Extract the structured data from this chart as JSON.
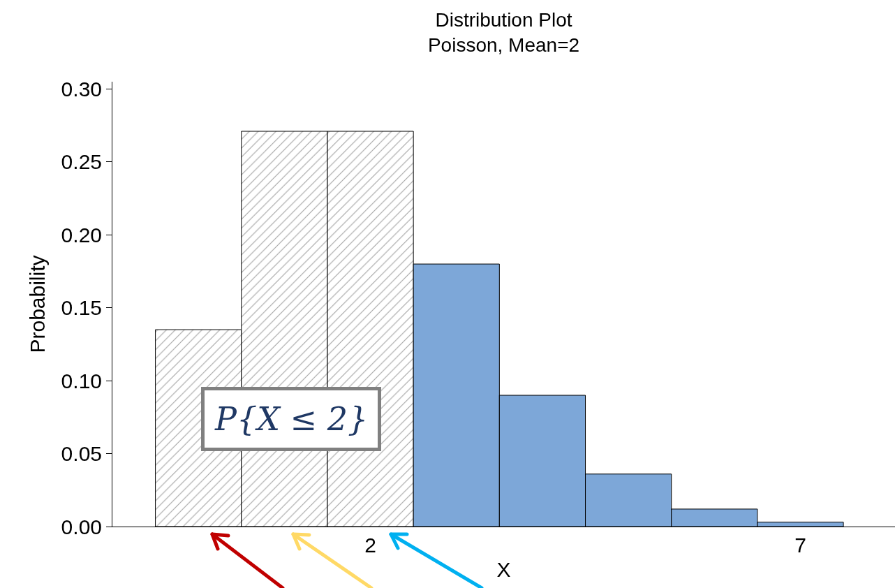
{
  "chart_data": {
    "type": "bar",
    "title": "Distribution Plot",
    "subtitle": "Poisson, Mean=2",
    "xlabel": "X",
    "ylabel": "Probability",
    "x": [
      0,
      1,
      2,
      3,
      4,
      5,
      6,
      7
    ],
    "values": [
      0.135,
      0.271,
      0.271,
      0.18,
      0.09,
      0.036,
      0.012,
      0.003
    ],
    "colors": [
      "#000000",
      "#000000",
      "#000000",
      "#7da7d8",
      "#7da7d8",
      "#7da7d8",
      "#7da7d8",
      "#7da7d8"
    ],
    "xlim": [
      -1,
      8.1
    ],
    "xticks": [
      2,
      7
    ],
    "ylim": [
      0,
      0.305
    ],
    "yticks": [
      {
        "value": 0,
        "label": "0.00"
      },
      {
        "value": 0.05,
        "label": "0.05"
      },
      {
        "value": 0.1,
        "label": "0.10"
      },
      {
        "value": 0.15,
        "label": "0.15"
      },
      {
        "value": 0.2,
        "label": "0.20"
      },
      {
        "value": 0.25,
        "label": "0.25"
      },
      {
        "value": 0.3,
        "label": "0.30"
      }
    ],
    "annotations": [
      "P{X ≤ 2}"
    ],
    "grid": false
  }
}
